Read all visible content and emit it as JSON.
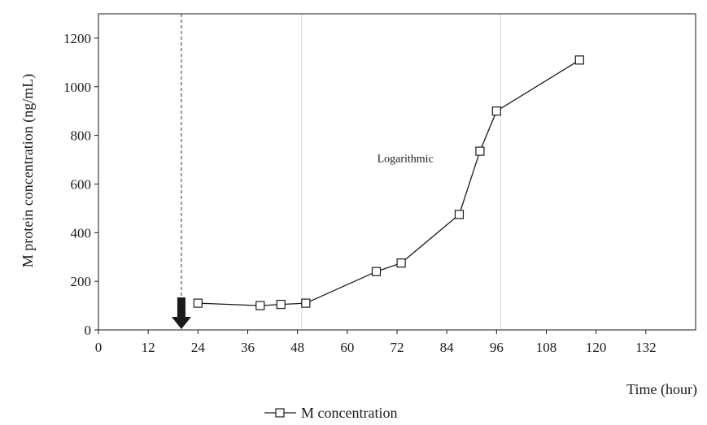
{
  "chart_data": {
    "type": "line",
    "xlabel": "Time (hour)",
    "ylabel": "M protein concentration (ng/mL)",
    "xlim": [
      0,
      144
    ],
    "ylim": [
      0,
      1300
    ],
    "x_ticks": [
      0,
      12,
      24,
      36,
      48,
      60,
      72,
      84,
      96,
      108,
      120,
      132
    ],
    "y_ticks": [
      0,
      200,
      400,
      600,
      800,
      1000,
      1200
    ],
    "grid": false,
    "phase_lines_x": [
      49,
      97
    ],
    "dashed_marker_x": 20,
    "arrow_x": 20,
    "annotations": [
      {
        "text": "Logarithmic",
        "x": 74,
        "y": 690
      }
    ],
    "legend_position": "bottom-center",
    "series": [
      {
        "name": "M concentration",
        "marker": "open-square",
        "color": "#1a1a1a",
        "x": [
          24,
          39,
          44,
          50,
          67,
          73,
          87,
          92,
          96,
          116
        ],
        "y": [
          110,
          100,
          105,
          110,
          240,
          275,
          475,
          735,
          900,
          1110
        ]
      }
    ]
  }
}
